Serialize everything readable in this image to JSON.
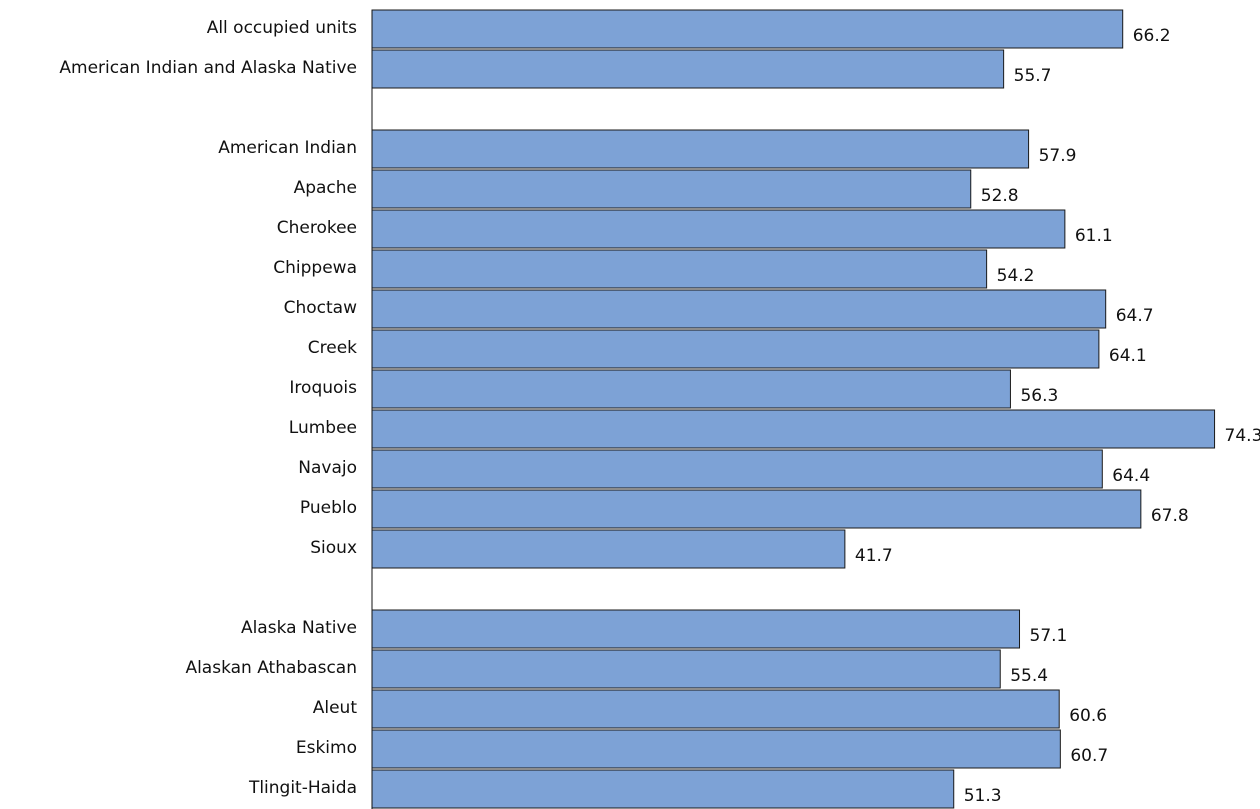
{
  "chart_data": {
    "type": "bar",
    "orientation": "horizontal",
    "title": "",
    "xlabel": "",
    "ylabel": "",
    "xlim": [
      0,
      74.3
    ],
    "grid": false,
    "legend": "none",
    "bar_color": "#7da2d6",
    "groups": [
      {
        "categories": [
          "All occupied units",
          "American Indian and Alaska Native"
        ],
        "values": [
          66.2,
          55.7
        ],
        "value_labels": [
          "66.2",
          "55.7"
        ]
      },
      {
        "categories": [
          "American Indian",
          "Apache",
          "Cherokee",
          "Chippewa",
          "Choctaw",
          "Creek",
          "Iroquois",
          "Lumbee",
          "Navajo",
          "Pueblo",
          "Sioux"
        ],
        "values": [
          57.9,
          52.8,
          61.1,
          54.2,
          64.7,
          64.1,
          56.3,
          74.3,
          64.4,
          67.8,
          41.7
        ],
        "value_labels": [
          "57.9",
          "52.8",
          "61.1",
          "54.2",
          "64.7",
          "64.1",
          "56.3",
          "74.3",
          "64.4",
          "67.8",
          "41.7"
        ]
      },
      {
        "categories": [
          "Alaska Native",
          "Alaskan Athabascan",
          "Aleut",
          "Eskimo",
          "Tlingit-Haida"
        ],
        "values": [
          57.1,
          55.4,
          60.6,
          60.7,
          51.3
        ],
        "value_labels": [
          "57.1",
          "55.4",
          "60.6",
          "60.7",
          "51.3"
        ]
      }
    ]
  }
}
